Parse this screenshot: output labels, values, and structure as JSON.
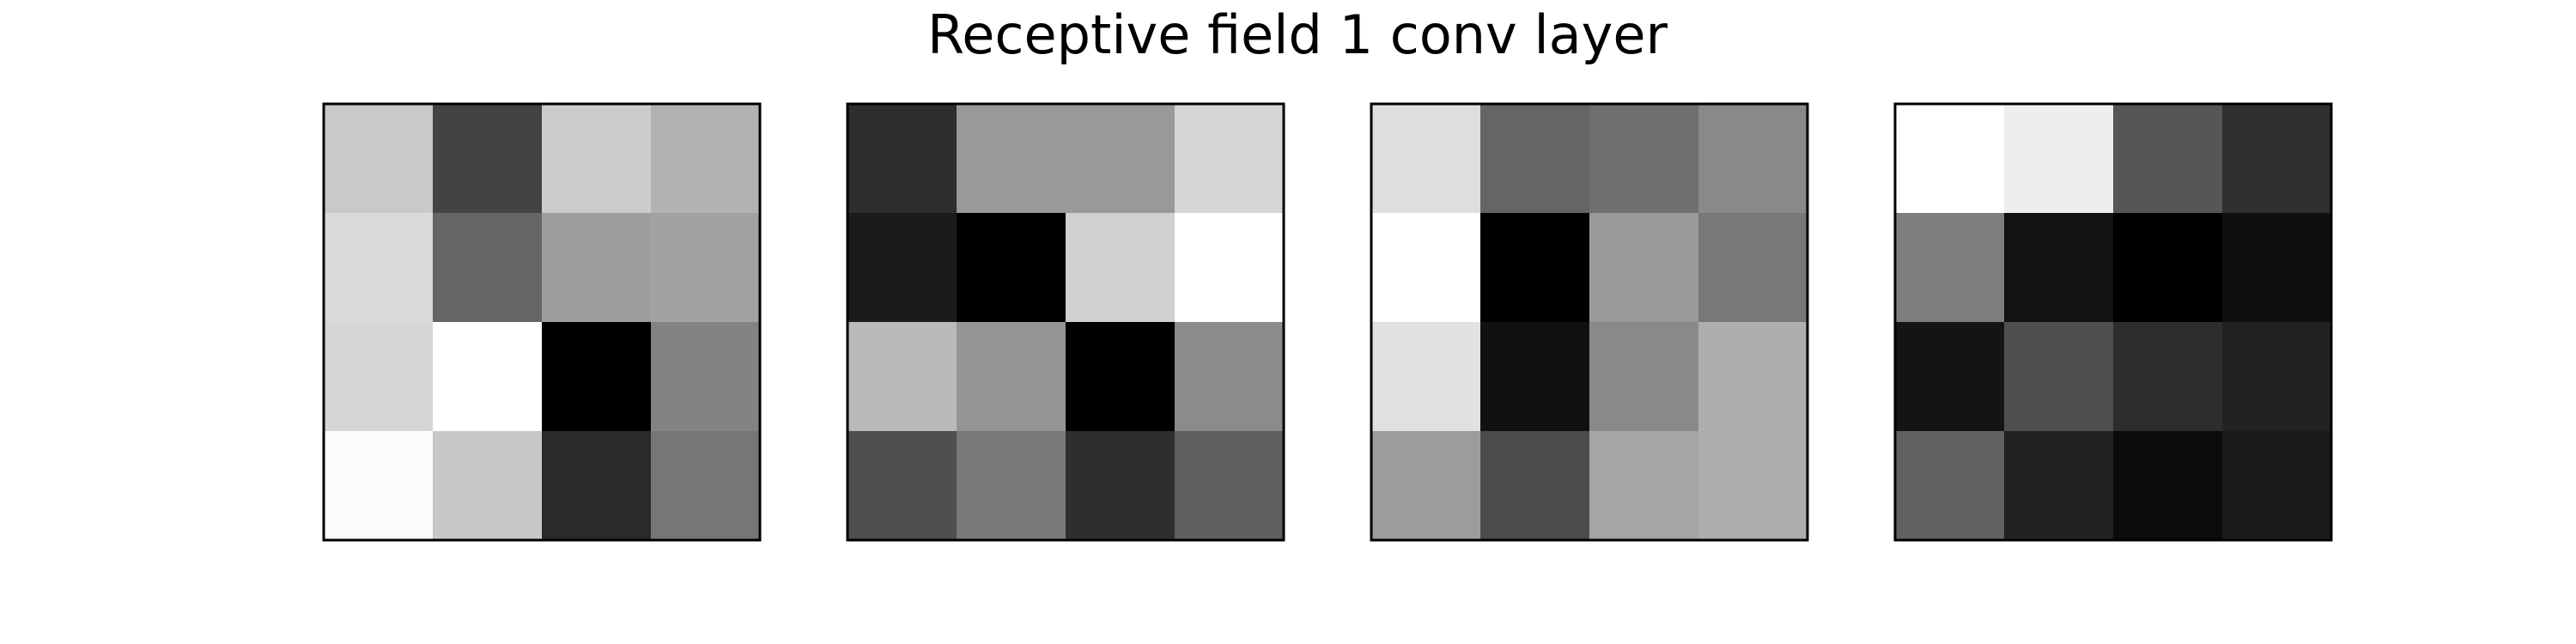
{
  "chart_data": {
    "type": "heatmap",
    "title": "Receptive field 1 conv layer",
    "colormap": "gray",
    "value_range": [
      0,
      255
    ],
    "grid": false,
    "panels": [
      {
        "rows": 4,
        "cols": 4,
        "values": [
          [
            201,
            67,
            204,
            178
          ],
          [
            217,
            101,
            157,
            162
          ],
          [
            214,
            255,
            0,
            131
          ],
          [
            252,
            200,
            42,
            118
          ]
        ]
      },
      {
        "rows": 4,
        "cols": 4,
        "values": [
          [
            45,
            153,
            153,
            214
          ],
          [
            27,
            0,
            208,
            255
          ],
          [
            186,
            149,
            0,
            139
          ],
          [
            79,
            121,
            46,
            95
          ]
        ]
      },
      {
        "rows": 4,
        "cols": 4,
        "values": [
          [
            222,
            101,
            111,
            137
          ],
          [
            255,
            0,
            153,
            120
          ],
          [
            225,
            17,
            137,
            174
          ],
          [
            156,
            75,
            165,
            172
          ]
        ]
      },
      {
        "rows": 4,
        "cols": 4,
        "values": [
          [
            255,
            238,
            86,
            48
          ],
          [
            126,
            18,
            0,
            15
          ],
          [
            20,
            79,
            45,
            34
          ],
          [
            98,
            34,
            12,
            27
          ]
        ]
      }
    ]
  }
}
